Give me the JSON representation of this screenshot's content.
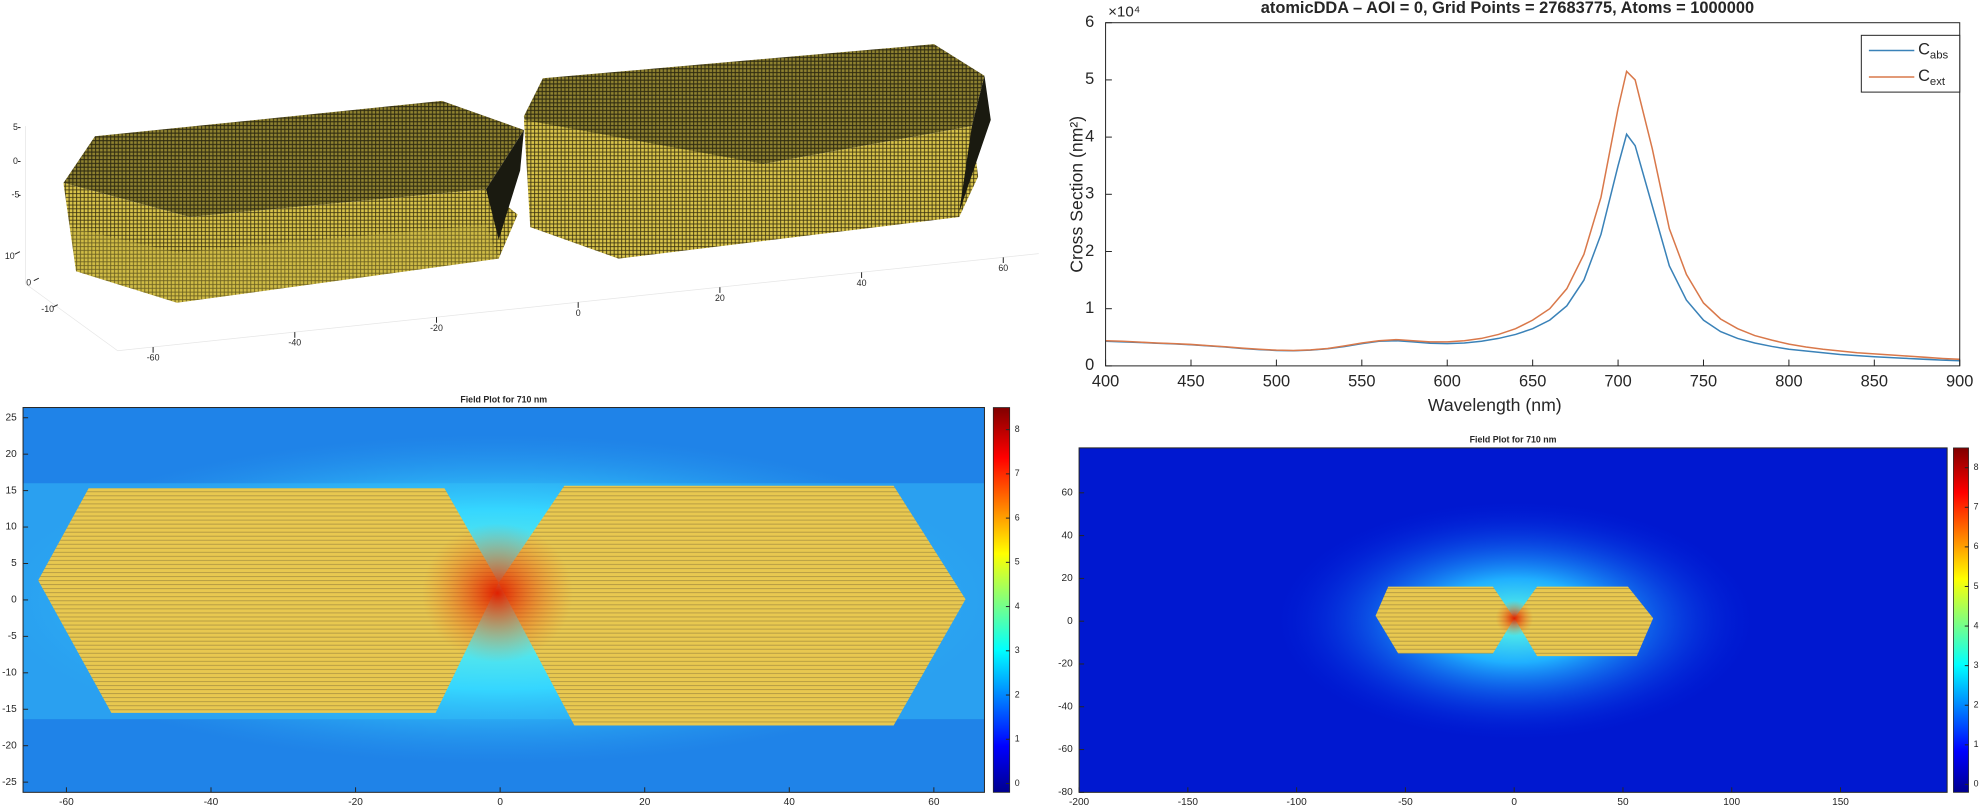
{
  "chart_data": [
    {
      "type": "scatter3d",
      "xlim": [
        -65,
        65
      ],
      "ylim": [
        -15,
        15
      ],
      "zlim": [
        -8,
        8
      ],
      "xticks": [
        -60,
        -40,
        -20,
        0,
        20,
        40,
        60
      ],
      "yticks": [
        -10,
        0,
        10
      ],
      "zticks": [
        -5,
        0,
        5
      ],
      "color": "#c8b43c"
    },
    {
      "type": "line",
      "title": "atomicDDA – AOI = 0, Grid Points = 27683775, Atoms = 1000000",
      "x_label": "Wavelength (nm)",
      "y_label": "Cross Section (nm²)",
      "y_exponent": "×10⁴",
      "x": [
        400,
        410,
        420,
        430,
        440,
        450,
        460,
        470,
        480,
        490,
        500,
        510,
        520,
        530,
        540,
        550,
        560,
        570,
        580,
        590,
        600,
        610,
        620,
        630,
        640,
        650,
        660,
        670,
        680,
        690,
        700,
        705,
        710,
        720,
        730,
        740,
        750,
        760,
        770,
        780,
        790,
        800,
        810,
        820,
        830,
        840,
        850,
        860,
        870,
        880,
        890,
        900
      ],
      "series": [
        {
          "name": "Cabs",
          "color": "#3a82b8",
          "values": [
            4300,
            4200,
            4100,
            3950,
            3850,
            3700,
            3500,
            3300,
            3050,
            2850,
            2700,
            2650,
            2750,
            3000,
            3400,
            3900,
            4300,
            4400,
            4200,
            3950,
            3900,
            4000,
            4300,
            4800,
            5500,
            6500,
            8000,
            10500,
            15000,
            23000,
            35000,
            40500,
            38500,
            28000,
            17500,
            11500,
            8000,
            6000,
            4800,
            4000,
            3400,
            2900,
            2600,
            2300,
            2000,
            1800,
            1600,
            1450,
            1300,
            1150,
            1000,
            900
          ]
        },
        {
          "name": "Cext",
          "color": "#d9784a",
          "values": [
            4400,
            4300,
            4150,
            4000,
            3900,
            3750,
            3550,
            3350,
            3100,
            2900,
            2750,
            2700,
            2800,
            3050,
            3500,
            4000,
            4400,
            4600,
            4400,
            4200,
            4200,
            4400,
            4800,
            5500,
            6500,
            8000,
            10000,
            13500,
            19500,
            29500,
            45000,
            51500,
            50000,
            38000,
            24000,
            16000,
            11000,
            8200,
            6500,
            5300,
            4500,
            3800,
            3300,
            2900,
            2600,
            2300,
            2100,
            1900,
            1700,
            1500,
            1300,
            1150
          ]
        }
      ],
      "xlim": [
        400,
        900
      ],
      "ylim": [
        0,
        60000
      ],
      "xticks": [
        400,
        450,
        500,
        550,
        600,
        650,
        700,
        750,
        800,
        850,
        900
      ],
      "yticks": [
        0,
        {
          "value": 10000,
          "label": "1"
        },
        {
          "value": 20000,
          "label": "2"
        },
        {
          "value": 30000,
          "label": "3"
        },
        {
          "value": 40000,
          "label": "4"
        },
        {
          "value": 50000,
          "label": "5"
        },
        {
          "value": 60000,
          "label": "6"
        }
      ],
      "legend": "northeast",
      "grid": false
    },
    {
      "type": "heatmap",
      "title": "Field Plot for 710 nm",
      "colormap": "jet",
      "xlim": [
        -66,
        67
      ],
      "ylim": [
        -26.4,
        26.4
      ],
      "clim": [
        -0.2,
        8.5
      ],
      "xticks": [
        -60,
        -40,
        -20,
        0,
        20,
        40,
        60
      ],
      "yticks": [
        -25,
        -20,
        -15,
        -10,
        -5,
        0,
        5,
        10,
        15,
        20,
        25
      ],
      "cticks": [
        0,
        1,
        2,
        3,
        4,
        5,
        6,
        7,
        8
      ]
    },
    {
      "type": "heatmap",
      "title": "Field Plot for 710 nm",
      "colormap": "jet",
      "xlim": [
        -200,
        199
      ],
      "ylim": [
        -80,
        81
      ],
      "clim": [
        -0.2,
        8.5
      ],
      "xticks": [
        -200,
        -150,
        -100,
        -50,
        0,
        50,
        100,
        150
      ],
      "yticks": [
        -80,
        -60,
        -40,
        -20,
        0,
        20,
        40,
        60
      ],
      "cticks": [
        0,
        1,
        2,
        3,
        4,
        5,
        6,
        7,
        8
      ]
    }
  ]
}
